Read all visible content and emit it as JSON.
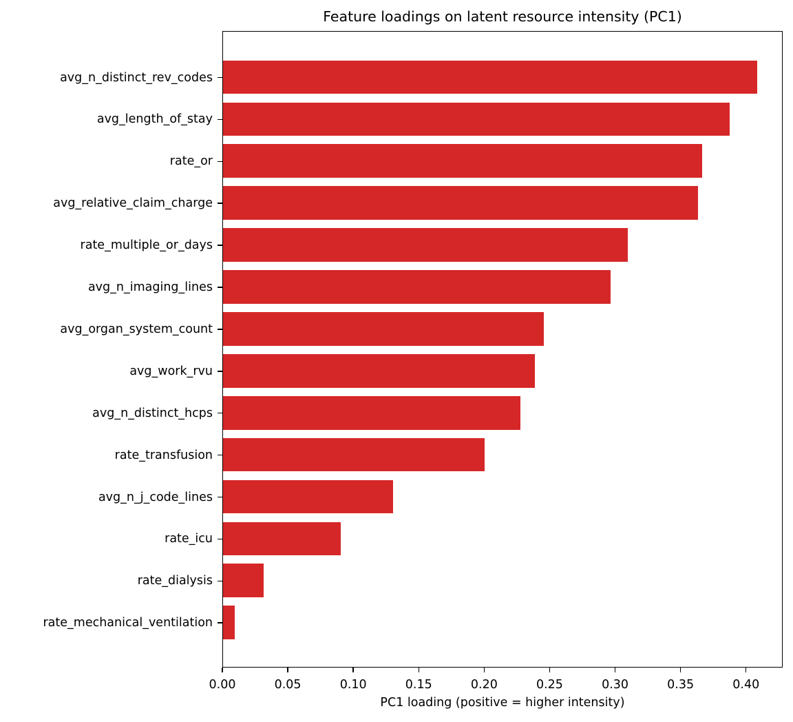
{
  "chart_data": {
    "type": "bar",
    "orientation": "horizontal",
    "title": "Feature loadings on latent resource intensity (PC1)",
    "xlabel": "PC1 loading (positive = higher intensity)",
    "ylabel": "",
    "xlim": [
      0.0,
      0.428
    ],
    "xticks": [
      "0.00",
      "0.05",
      "0.10",
      "0.15",
      "0.20",
      "0.25",
      "0.30",
      "0.35",
      "0.40"
    ],
    "grid": false,
    "legend": null,
    "bar_color": "#d62728",
    "categories": [
      "avg_n_distinct_rev_codes",
      "avg_length_of_stay",
      "rate_or",
      "avg_relative_claim_charge",
      "rate_multiple_or_days",
      "avg_n_imaging_lines",
      "avg_organ_system_count",
      "avg_work_rvu",
      "avg_n_distinct_hcps",
      "rate_transfusion",
      "avg_n_j_code_lines",
      "rate_icu",
      "rate_dialysis",
      "rate_mechanical_ventilation"
    ],
    "values": [
      0.408,
      0.387,
      0.366,
      0.363,
      0.309,
      0.296,
      0.245,
      0.238,
      0.227,
      0.2,
      0.13,
      0.09,
      0.031,
      0.009
    ]
  }
}
